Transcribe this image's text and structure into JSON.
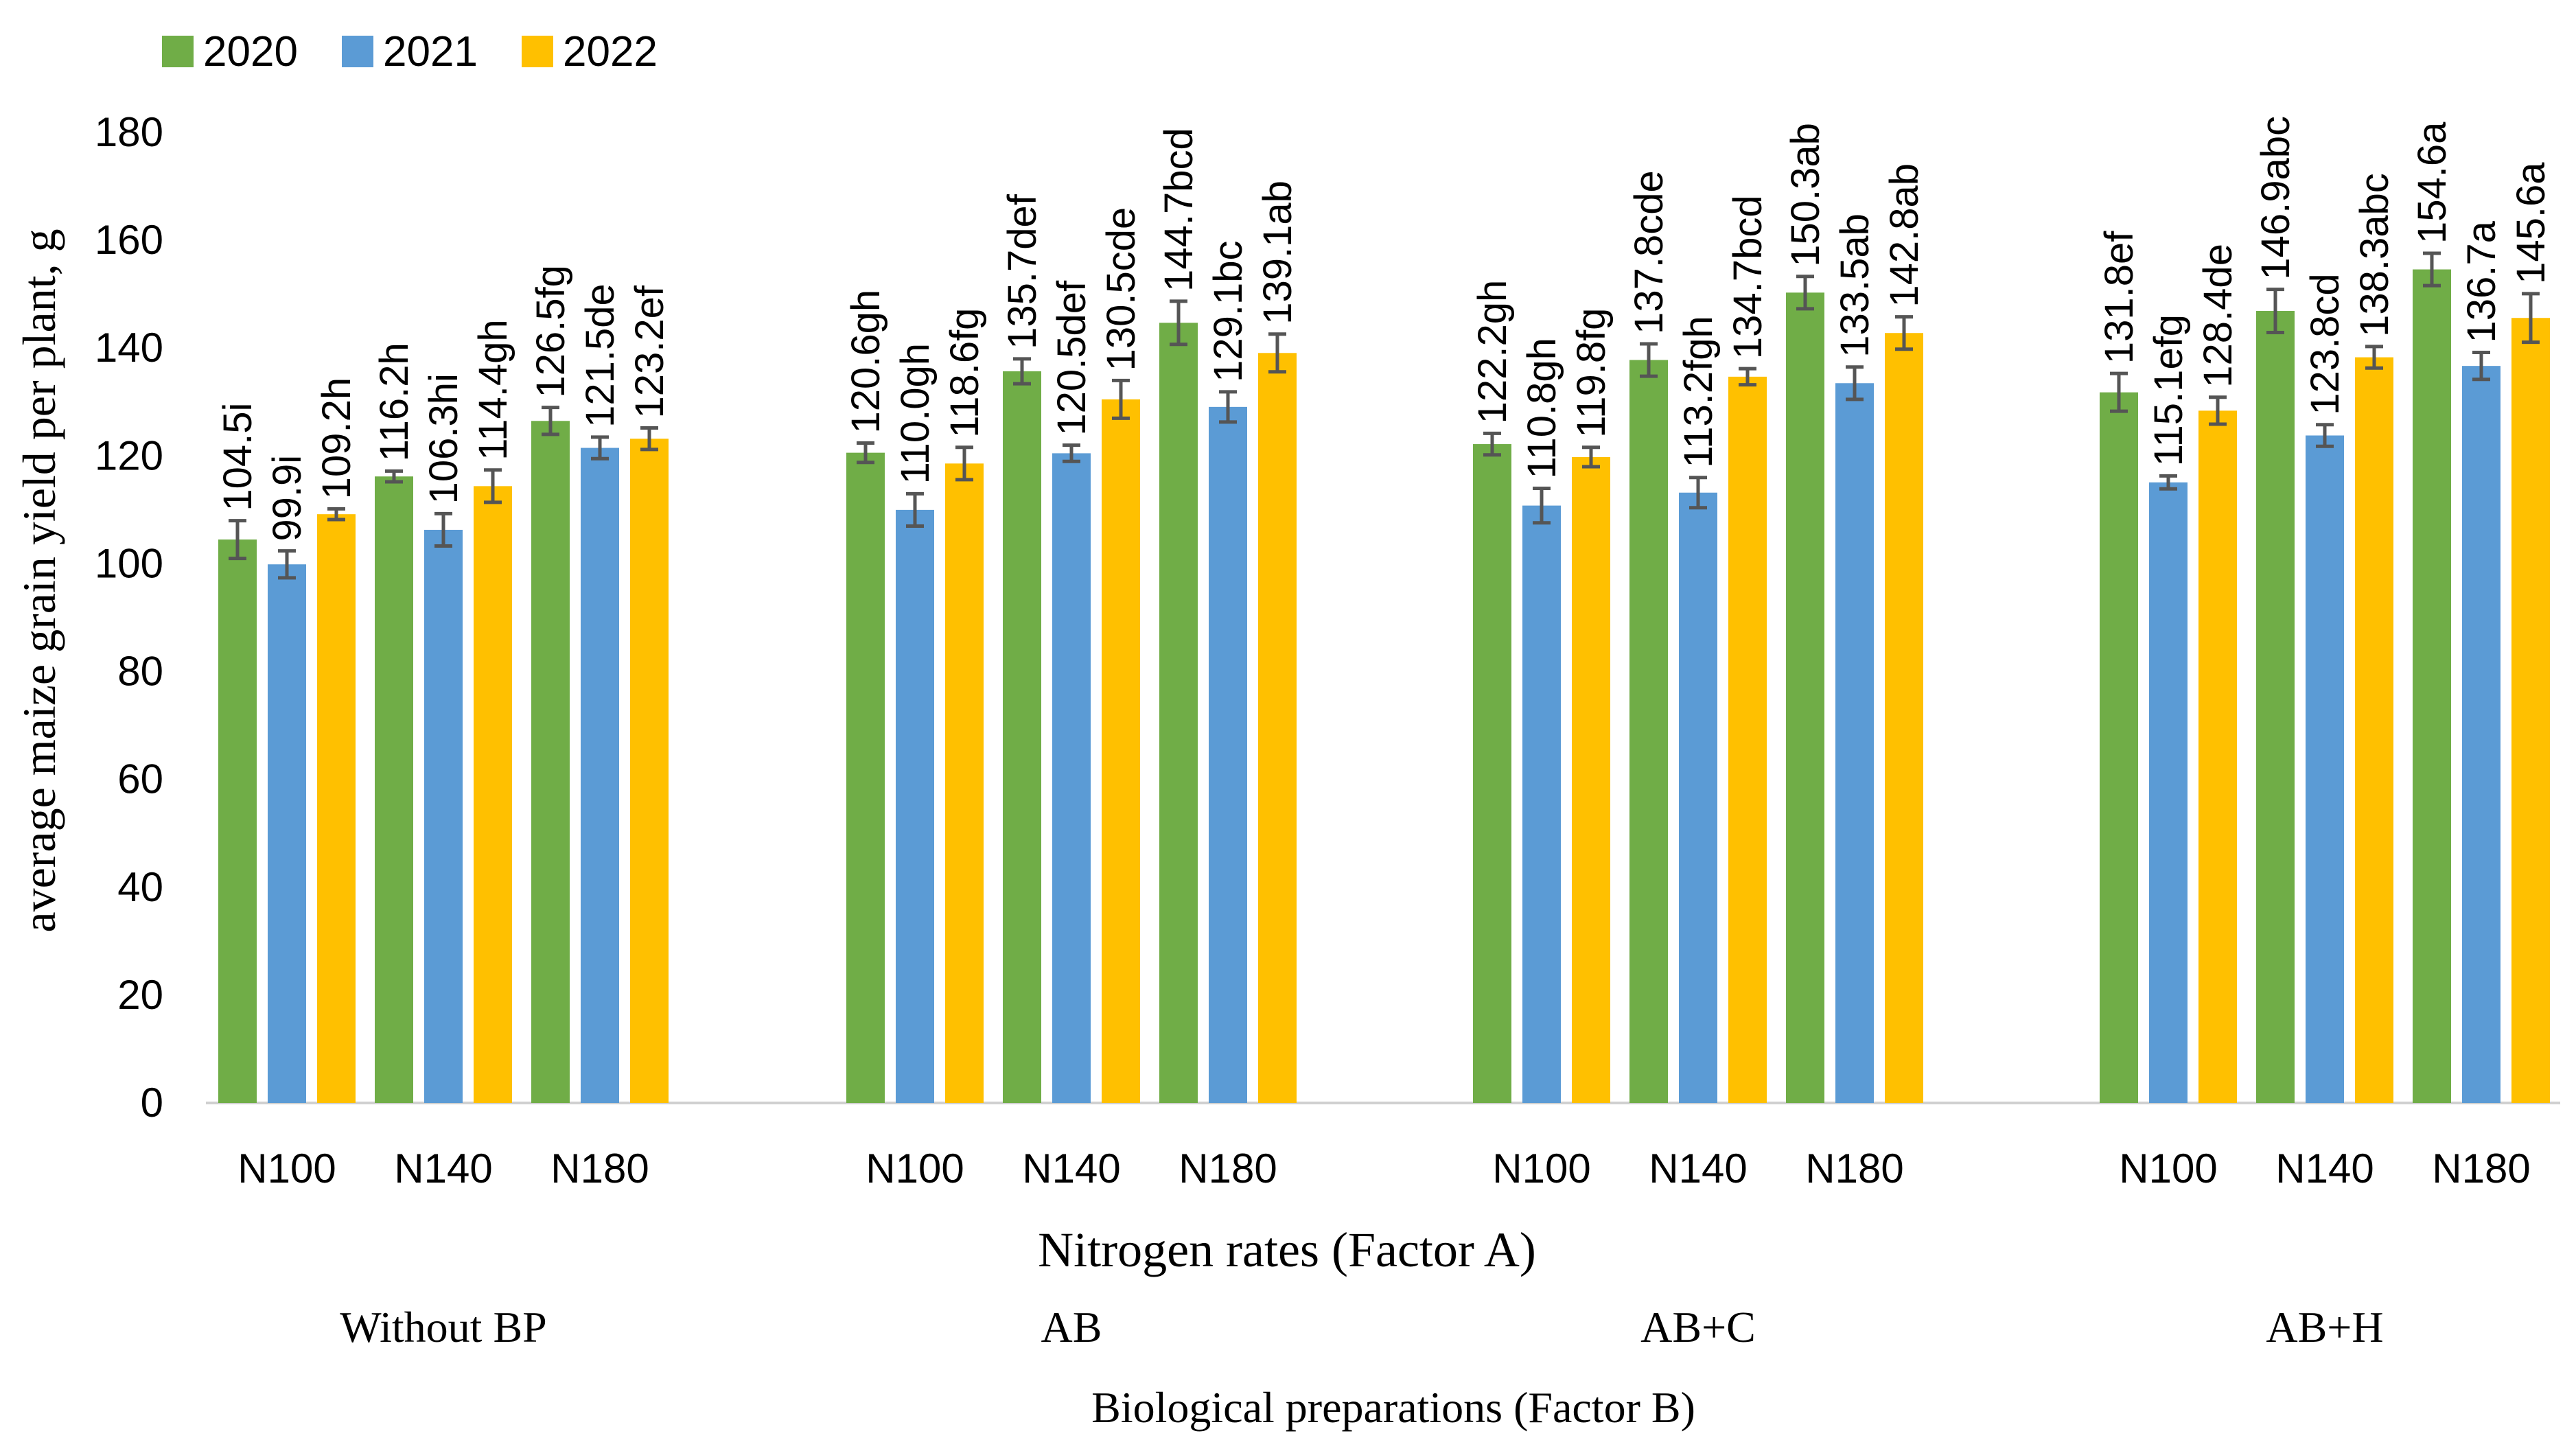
{
  "chart_data": {
    "type": "bar",
    "title": "",
    "ylabel": "average maize grain yield per plant, g",
    "xlabel": "Nitrogen rates (Factor A)",
    "group_axis_label": "Biological preparations (Factor B)",
    "ylim": [
      0,
      180
    ],
    "yticks": [
      "0",
      "20",
      "40",
      "60",
      "80",
      "100",
      "120",
      "140",
      "160",
      "180"
    ],
    "grid": false,
    "legend_position": "top-left",
    "colors": {
      "2020": "#70AD47",
      "2021": "#5B9BD5",
      "2022": "#FFC000",
      "error": "#555555",
      "axis": "#d0d0d0"
    },
    "series": [
      {
        "name": "2020",
        "values": [
          104.5,
          116.2,
          126.5,
          120.6,
          135.7,
          144.7,
          122.2,
          137.8,
          150.3,
          131.8,
          146.9,
          154.6
        ],
        "labels": [
          "104.5i",
          "116.2h",
          "126.5fg",
          "120.6gh",
          "135.7def",
          "144.7bcd",
          "122.2gh",
          "137.8cde",
          "150.3ab",
          "131.8ef",
          "146.9abc",
          "154.6a"
        ],
        "errors": [
          3.5,
          1.0,
          2.5,
          1.8,
          2.3,
          4.0,
          2.0,
          3.0,
          3.0,
          3.5,
          4.0,
          3.0
        ]
      },
      {
        "name": "2021",
        "values": [
          99.9,
          106.3,
          121.5,
          110.0,
          120.5,
          129.1,
          110.8,
          113.2,
          133.5,
          115.1,
          123.8,
          136.7
        ],
        "labels": [
          "99.9i",
          "106.3hi",
          "121.5de",
          "110.0gh",
          "120.5def",
          "129.1bc",
          "110.8gh",
          "113.2fgh",
          "133.5ab",
          "115.1efg",
          "123.8cd",
          "136.7a"
        ],
        "errors": [
          2.5,
          3.0,
          2.0,
          3.0,
          1.5,
          2.8,
          3.2,
          2.8,
          3.0,
          1.2,
          2.0,
          2.5
        ]
      },
      {
        "name": "2022",
        "values": [
          109.2,
          114.4,
          123.2,
          118.6,
          130.5,
          139.1,
          119.8,
          134.7,
          142.8,
          128.4,
          138.3,
          145.6
        ],
        "labels": [
          "109.2h",
          "114.4gh",
          "123.2ef",
          "118.6fg",
          "130.5cde",
          "139.1ab",
          "119.8fg",
          "134.7bcd",
          "142.8ab",
          "128.4de",
          "138.3abc",
          "145.6a"
        ],
        "errors": [
          1.0,
          3.0,
          2.0,
          3.0,
          3.5,
          3.5,
          1.8,
          1.5,
          3.0,
          2.5,
          2.0,
          4.5
        ]
      }
    ],
    "categories": [
      "N100",
      "N140",
      "N180",
      "N100",
      "N140",
      "N180",
      "N100",
      "N140",
      "N180",
      "N100",
      "N140",
      "N180"
    ],
    "groups": [
      {
        "label": "Without BP",
        "members": [
          0,
          1,
          2
        ]
      },
      {
        "label": "AB",
        "members": [
          3,
          4,
          5
        ]
      },
      {
        "label": "AB+C",
        "members": [
          6,
          7,
          8
        ]
      },
      {
        "label": "AB+H",
        "members": [
          9,
          10,
          11
        ]
      }
    ]
  }
}
